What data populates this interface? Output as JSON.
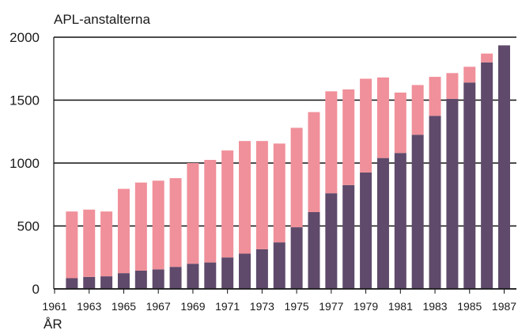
{
  "chart_data": {
    "type": "bar",
    "stacked": true,
    "title": "APL-anstalterna",
    "xlabel": "ÅR",
    "ylabel": "",
    "ylim": [
      0,
      2000
    ],
    "yticks": [
      0,
      500,
      1000,
      1500,
      2000
    ],
    "xticks": [
      "1961",
      "1963",
      "1965",
      "1967",
      "1969",
      "1971",
      "1973",
      "1975",
      "1977",
      "1979",
      "1981",
      "1983",
      "1985",
      "1987"
    ],
    "grid": true,
    "categories": [
      1962,
      1963,
      1964,
      1965,
      1966,
      1967,
      1968,
      1969,
      1970,
      1971,
      1972,
      1973,
      1974,
      1975,
      1976,
      1977,
      1978,
      1979,
      1980,
      1981,
      1982,
      1983,
      1984,
      1985,
      1986,
      1987
    ],
    "series": [
      {
        "color": "#5f4a6b",
        "values": [
          85,
          95,
          100,
          125,
          145,
          155,
          175,
          200,
          210,
          250,
          280,
          315,
          370,
          490,
          610,
          760,
          825,
          925,
          1040,
          1080,
          1225,
          1375,
          1510,
          1640,
          1800,
          1935
        ]
      },
      {
        "color": "#f0909a",
        "values": [
          530,
          535,
          515,
          670,
          700,
          705,
          705,
          800,
          815,
          850,
          895,
          860,
          785,
          790,
          795,
          810,
          760,
          745,
          640,
          480,
          395,
          310,
          205,
          125,
          70,
          0
        ]
      }
    ]
  }
}
